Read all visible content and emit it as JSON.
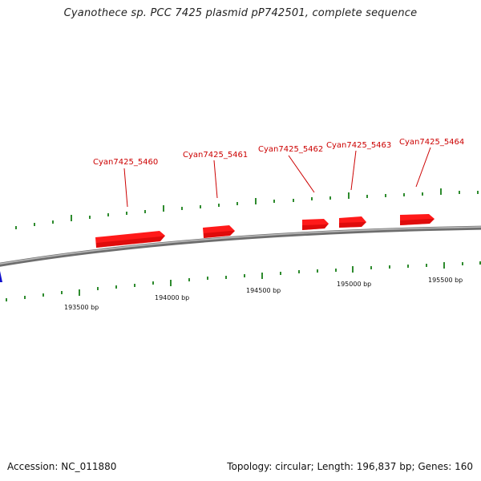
{
  "title": "Cyanothece sp. PCC 7425 plasmid pP742501, complete sequence",
  "footer": {
    "accession": "Accession: NC_011880",
    "summary": "Topology: circular; Length: 196,837 bp; Genes: 160"
  },
  "colors": {
    "gene": "#ff1a1a",
    "gene_label": "#cc0000",
    "tick": "#2e8b2e",
    "backbone": "#8c8c8c",
    "marker": "#1010cc"
  },
  "position_labels": [
    "193500 bp",
    "194000 bp",
    "194500 bp",
    "195000 bp",
    "195500 bp"
  ],
  "genes": [
    {
      "name": "Cyan7425_5460",
      "strand": "+"
    },
    {
      "name": "Cyan7425_5461",
      "strand": "+"
    },
    {
      "name": "Cyan7425_5462",
      "strand": "+"
    },
    {
      "name": "Cyan7425_5463",
      "strand": "+"
    },
    {
      "name": "Cyan7425_5464",
      "strand": "+"
    }
  ]
}
